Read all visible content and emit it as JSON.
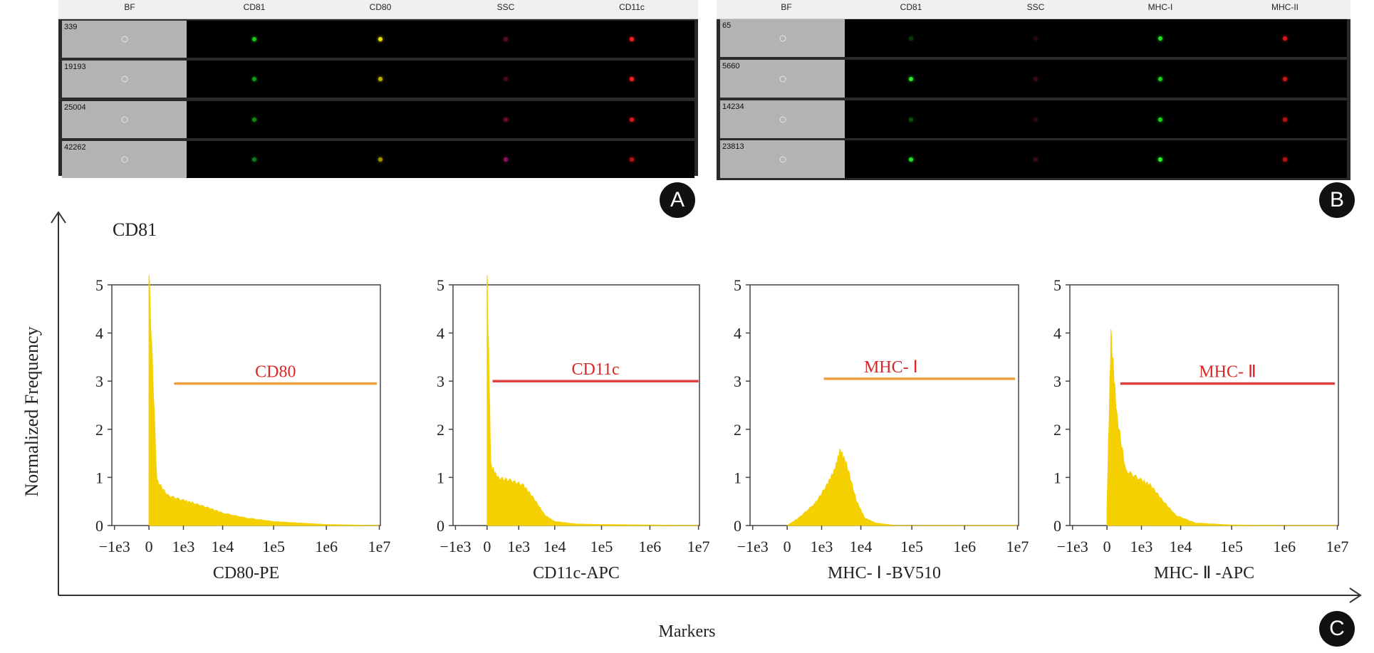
{
  "panel_a": {
    "badge": "A",
    "columns": [
      "BF",
      "CD81",
      "CD80",
      "SSC",
      "CD11c"
    ],
    "rows": [
      {
        "id": "339",
        "dots": [
          "#1cc41c",
          "#e8e000",
          "#5a0a2a",
          "#ff1c1c"
        ]
      },
      {
        "id": "19193",
        "dots": [
          "#149a14",
          "#b8b000",
          "#4a0822",
          "#ff1c1c"
        ]
      },
      {
        "id": "25004",
        "dots": [
          "#128a12",
          "",
          "#6a0a30",
          "#e01414"
        ]
      },
      {
        "id": "42262",
        "dots": [
          "#107a10",
          "#9a9400",
          "#8a1060",
          "#c01010"
        ]
      }
    ]
  },
  "panel_b": {
    "badge": "B",
    "columns": [
      "BF",
      "CD81",
      "SSC",
      "MHC-I",
      "MHC-II"
    ],
    "rows": [
      {
        "id": "65",
        "dots": [
          "#0a3a0a",
          "#2a0612",
          "#1ee01e",
          "#e01414"
        ]
      },
      {
        "id": "5660",
        "dots": [
          "#28e828",
          "#3a0818",
          "#1ad01a",
          "#d01414"
        ]
      },
      {
        "id": "14234",
        "dots": [
          "#0c4a0c",
          "#2a0612",
          "#1ad01a",
          "#c01010"
        ]
      },
      {
        "id": "23813",
        "dots": [
          "#22e022",
          "#3a0818",
          "#28f028",
          "#c01010"
        ]
      }
    ]
  },
  "panel_c": {
    "badge": "C",
    "top_label": "CD81",
    "ylabel": "Normalized Frequency",
    "xlabel": "Markers"
  },
  "chart_data": [
    {
      "type": "area",
      "xlabel": "CD80-PE",
      "gate_label": "CD80",
      "gate_color": "#f0a040",
      "label_color": "#d8282a",
      "fill_color": "#f5d000",
      "x_scale": "biexponential",
      "x_ticks": [
        "−1e3",
        "0",
        "1e3",
        "1e4",
        "1e5",
        "1e6",
        "1e7"
      ],
      "ylim": [
        0,
        5
      ],
      "y_ticks": [
        0,
        1,
        2,
        3,
        4,
        5
      ],
      "gate": {
        "x_start": 700,
        "x_end": 9000000,
        "y": 2.95
      },
      "x": [
        0,
        200,
        500,
        1000,
        2000,
        5000,
        10000,
        30000,
        100000,
        300000,
        1000000,
        10000000
      ],
      "y": [
        5.0,
        0.9,
        0.6,
        0.5,
        0.45,
        0.35,
        0.25,
        0.15,
        0.08,
        0.05,
        0.02,
        0.0
      ]
    },
    {
      "type": "area",
      "xlabel": "CD11c-APC",
      "gate_label": "CD11c",
      "gate_color": "#e04040",
      "label_color": "#d8282a",
      "fill_color": "#f5d000",
      "x_scale": "biexponential",
      "x_ticks": [
        "−1e3",
        "0",
        "1e3",
        "1e4",
        "1e5",
        "1e6",
        "1e7"
      ],
      "ylim": [
        0,
        5
      ],
      "y_ticks": [
        0,
        1,
        2,
        3,
        4,
        5
      ],
      "gate": {
        "x_start": 150,
        "x_end": 10000000,
        "y": 3.0
      },
      "x": [
        0,
        100,
        300,
        700,
        1500,
        3000,
        6000,
        10000,
        30000,
        100000,
        1000000,
        10000000
      ],
      "y": [
        5.0,
        1.2,
        0.95,
        0.9,
        0.8,
        0.55,
        0.2,
        0.08,
        0.03,
        0.02,
        0.01,
        0.0
      ]
    },
    {
      "type": "area",
      "xlabel": "MHC- Ⅰ -BV510",
      "gate_label": "MHC- Ⅰ",
      "gate_color": "#f0a040",
      "label_color": "#d8282a",
      "fill_color": "#f5d000",
      "x_scale": "biexponential",
      "x_ticks": [
        "−1e3",
        "0",
        "1e3",
        "1e4",
        "1e5",
        "1e6",
        "1e7"
      ],
      "ylim": [
        0,
        5
      ],
      "y_ticks": [
        0,
        1,
        2,
        3,
        4,
        5
      ],
      "gate": {
        "x_start": 1200,
        "x_end": 9000000,
        "y": 3.05
      },
      "x": [
        0,
        300,
        800,
        1500,
        2500,
        3500,
        5000,
        8000,
        12000,
        20000,
        50000,
        10000000
      ],
      "y": [
        0.0,
        0.15,
        0.45,
        0.8,
        1.1,
        1.5,
        1.2,
        0.5,
        0.15,
        0.05,
        0.0,
        0.0
      ]
    },
    {
      "type": "area",
      "xlabel": "MHC- Ⅱ -APC",
      "gate_label": "MHC- Ⅱ",
      "gate_color": "#e04040",
      "label_color": "#d8282a",
      "fill_color": "#f5d000",
      "x_scale": "biexponential",
      "x_ticks": [
        "−1e3",
        "0",
        "1e3",
        "1e4",
        "1e5",
        "1e6",
        "1e7"
      ],
      "ylim": [
        0,
        5
      ],
      "y_ticks": [
        0,
        1,
        2,
        3,
        4,
        5
      ],
      "gate": {
        "x_start": 350,
        "x_end": 9000000,
        "y": 2.95
      },
      "x": [
        0,
        100,
        250,
        500,
        1000,
        2000,
        4000,
        8000,
        20000,
        100000,
        1000000,
        10000000
      ],
      "y": [
        0.3,
        3.8,
        2.2,
        1.1,
        0.9,
        0.8,
        0.5,
        0.2,
        0.05,
        0.01,
        0.0,
        0.0
      ]
    }
  ]
}
